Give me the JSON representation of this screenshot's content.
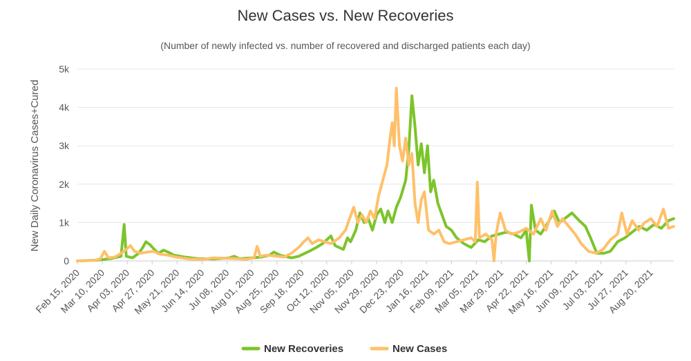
{
  "chart_data": {
    "type": "line",
    "title": "New Cases vs. New Recoveries",
    "subtitle": "(Number of newly infected vs. number of recovered and discharged patients each day)",
    "ylabel": "New Daily Coronavirus Cases+Cured",
    "xlabel": "",
    "ylim": [
      0,
      5000
    ],
    "yticks": [
      {
        "value": 0,
        "label": "0"
      },
      {
        "value": 1000,
        "label": "1k"
      },
      {
        "value": 2000,
        "label": "2k"
      },
      {
        "value": 3000,
        "label": "3k"
      },
      {
        "value": 4000,
        "label": "4k"
      },
      {
        "value": 5000,
        "label": "5k"
      }
    ],
    "xrange": [
      "2020-02-15",
      "2021-09-11"
    ],
    "xticks": [
      "Feb 15, 2020",
      "Mar 10, 2020",
      "Apr 03, 2020",
      "Apr 27, 2020",
      "May 21, 2020",
      "Jun 14, 2020",
      "Jul 08, 2020",
      "Aug 01, 2020",
      "Aug 25, 2020",
      "Sep 18, 2020",
      "Oct 12, 2020",
      "Nov 05, 2020",
      "Nov 29, 2020",
      "Dec 23, 2020",
      "Jan 16, 2021",
      "Feb 09, 2021",
      "Mar 05, 2021",
      "Mar 29, 2021",
      "Apr 22, 2021",
      "May 16, 2021",
      "Jun 09, 2021",
      "Jul 03, 2021",
      "Jul 27, 2021",
      "Aug 20, 2021"
    ],
    "grid": true,
    "legend_position": "bottom-center",
    "series": [
      {
        "name": "New Recoveries",
        "color": "#7cc42b",
        "points": [
          [
            "2020-02-15",
            0
          ],
          [
            "2020-03-05",
            20
          ],
          [
            "2020-03-18",
            60
          ],
          [
            "2020-03-28",
            120
          ],
          [
            "2020-03-31",
            950
          ],
          [
            "2020-04-02",
            120
          ],
          [
            "2020-04-08",
            80
          ],
          [
            "2020-04-14",
            200
          ],
          [
            "2020-04-18",
            350
          ],
          [
            "2020-04-21",
            500
          ],
          [
            "2020-04-25",
            420
          ],
          [
            "2020-04-29",
            300
          ],
          [
            "2020-05-03",
            200
          ],
          [
            "2020-05-08",
            280
          ],
          [
            "2020-05-13",
            220
          ],
          [
            "2020-05-18",
            150
          ],
          [
            "2020-05-28",
            100
          ],
          [
            "2020-06-10",
            60
          ],
          [
            "2020-06-25",
            50
          ],
          [
            "2020-07-10",
            80
          ],
          [
            "2020-07-15",
            120
          ],
          [
            "2020-07-20",
            60
          ],
          [
            "2020-08-01",
            80
          ],
          [
            "2020-08-10",
            100
          ],
          [
            "2020-08-18",
            150
          ],
          [
            "2020-08-22",
            230
          ],
          [
            "2020-08-28",
            150
          ],
          [
            "2020-09-08",
            80
          ],
          [
            "2020-09-15",
            120
          ],
          [
            "2020-09-25",
            250
          ],
          [
            "2020-10-02",
            350
          ],
          [
            "2020-10-08",
            450
          ],
          [
            "2020-10-12",
            550
          ],
          [
            "2020-10-16",
            650
          ],
          [
            "2020-10-20",
            400
          ],
          [
            "2020-10-28",
            300
          ],
          [
            "2020-11-01",
            600
          ],
          [
            "2020-11-04",
            500
          ],
          [
            "2020-11-09",
            800
          ],
          [
            "2020-11-13",
            1250
          ],
          [
            "2020-11-17",
            1000
          ],
          [
            "2020-11-21",
            1100
          ],
          [
            "2020-11-25",
            800
          ],
          [
            "2020-11-29",
            1200
          ],
          [
            "2020-12-03",
            1350
          ],
          [
            "2020-12-07",
            1000
          ],
          [
            "2020-12-10",
            1300
          ],
          [
            "2020-12-14",
            1000
          ],
          [
            "2020-12-18",
            1400
          ],
          [
            "2020-12-22",
            1650
          ],
          [
            "2020-12-27",
            2100
          ],
          [
            "2020-12-30",
            2900
          ],
          [
            "2021-01-02",
            4300
          ],
          [
            "2021-01-05",
            3500
          ],
          [
            "2021-01-08",
            2500
          ],
          [
            "2021-01-11",
            3050
          ],
          [
            "2021-01-14",
            2300
          ],
          [
            "2021-01-17",
            3000
          ],
          [
            "2021-01-20",
            1800
          ],
          [
            "2021-01-23",
            2100
          ],
          [
            "2021-01-27",
            1500
          ],
          [
            "2021-01-31",
            1200
          ],
          [
            "2021-02-04",
            900
          ],
          [
            "2021-02-09",
            800
          ],
          [
            "2021-02-14",
            600
          ],
          [
            "2021-02-21",
            450
          ],
          [
            "2021-02-28",
            350
          ],
          [
            "2021-03-07",
            550
          ],
          [
            "2021-03-13",
            500
          ],
          [
            "2021-03-20",
            650
          ],
          [
            "2021-03-27",
            700
          ],
          [
            "2021-04-03",
            750
          ],
          [
            "2021-04-10",
            700
          ],
          [
            "2021-04-17",
            600
          ],
          [
            "2021-04-22",
            800
          ],
          [
            "2021-04-25",
            0
          ],
          [
            "2021-04-27",
            1450
          ],
          [
            "2021-05-01",
            800
          ],
          [
            "2021-05-06",
            700
          ],
          [
            "2021-05-13",
            1000
          ],
          [
            "2021-05-19",
            1300
          ],
          [
            "2021-05-24",
            1000
          ],
          [
            "2021-05-29",
            1100
          ],
          [
            "2021-06-05",
            1250
          ],
          [
            "2021-06-12",
            1050
          ],
          [
            "2021-06-18",
            900
          ],
          [
            "2021-06-23",
            600
          ],
          [
            "2021-06-29",
            200
          ],
          [
            "2021-07-06",
            200
          ],
          [
            "2021-07-12",
            250
          ],
          [
            "2021-07-19",
            500
          ],
          [
            "2021-07-26",
            600
          ],
          [
            "2021-08-02",
            750
          ],
          [
            "2021-08-09",
            900
          ],
          [
            "2021-08-16",
            800
          ],
          [
            "2021-08-23",
            950
          ],
          [
            "2021-08-30",
            850
          ],
          [
            "2021-09-06",
            1050
          ],
          [
            "2021-09-11",
            1100
          ]
        ]
      },
      {
        "name": "New Cases",
        "color": "#ffc06a",
        "points": [
          [
            "2020-02-15",
            0
          ],
          [
            "2020-03-01",
            10
          ],
          [
            "2020-03-08",
            50
          ],
          [
            "2020-03-12",
            250
          ],
          [
            "2020-03-16",
            80
          ],
          [
            "2020-03-22",
            100
          ],
          [
            "2020-03-28",
            200
          ],
          [
            "2020-04-02",
            300
          ],
          [
            "2020-04-06",
            400
          ],
          [
            "2020-04-10",
            250
          ],
          [
            "2020-04-16",
            200
          ],
          [
            "2020-04-22",
            230
          ],
          [
            "2020-04-28",
            250
          ],
          [
            "2020-05-04",
            180
          ],
          [
            "2020-05-12",
            150
          ],
          [
            "2020-05-20",
            100
          ],
          [
            "2020-06-01",
            50
          ],
          [
            "2020-06-15",
            40
          ],
          [
            "2020-06-25",
            80
          ],
          [
            "2020-07-05",
            70
          ],
          [
            "2020-07-18",
            60
          ],
          [
            "2020-07-26",
            40
          ],
          [
            "2020-08-03",
            80
          ],
          [
            "2020-08-06",
            380
          ],
          [
            "2020-08-09",
            120
          ],
          [
            "2020-08-15",
            150
          ],
          [
            "2020-08-22",
            130
          ],
          [
            "2020-09-01",
            100
          ],
          [
            "2020-09-08",
            200
          ],
          [
            "2020-09-15",
            350
          ],
          [
            "2020-09-20",
            500
          ],
          [
            "2020-09-24",
            600
          ],
          [
            "2020-09-28",
            450
          ],
          [
            "2020-10-04",
            550
          ],
          [
            "2020-10-10",
            500
          ],
          [
            "2020-10-16",
            450
          ],
          [
            "2020-10-24",
            600
          ],
          [
            "2020-10-30",
            800
          ],
          [
            "2020-11-03",
            1100
          ],
          [
            "2020-11-07",
            1400
          ],
          [
            "2020-11-11",
            1000
          ],
          [
            "2020-11-15",
            1200
          ],
          [
            "2020-11-19",
            1000
          ],
          [
            "2020-11-23",
            1300
          ],
          [
            "2020-11-27",
            1100
          ],
          [
            "2020-12-01",
            1700
          ],
          [
            "2020-12-05",
            2100
          ],
          [
            "2020-12-09",
            2500
          ],
          [
            "2020-12-12",
            3200
          ],
          [
            "2020-12-14",
            3600
          ],
          [
            "2020-12-16",
            3000
          ],
          [
            "2020-12-18",
            4500
          ],
          [
            "2020-12-21",
            3000
          ],
          [
            "2020-12-24",
            2600
          ],
          [
            "2020-12-27",
            3200
          ],
          [
            "2020-12-30",
            2500
          ],
          [
            "2021-01-02",
            2800
          ],
          [
            "2021-01-05",
            1500
          ],
          [
            "2021-01-08",
            1000
          ],
          [
            "2021-01-11",
            1600
          ],
          [
            "2021-01-14",
            1800
          ],
          [
            "2021-01-18",
            800
          ],
          [
            "2021-01-23",
            700
          ],
          [
            "2021-01-28",
            800
          ],
          [
            "2021-02-02",
            500
          ],
          [
            "2021-02-07",
            450
          ],
          [
            "2021-02-14",
            500
          ],
          [
            "2021-02-21",
            550
          ],
          [
            "2021-02-28",
            600
          ],
          [
            "2021-03-04",
            500
          ],
          [
            "2021-03-06",
            2050
          ],
          [
            "2021-03-08",
            600
          ],
          [
            "2021-03-14",
            700
          ],
          [
            "2021-03-20",
            550
          ],
          [
            "2021-03-22",
            0
          ],
          [
            "2021-03-24",
            700
          ],
          [
            "2021-03-28",
            1250
          ],
          [
            "2021-04-02",
            800
          ],
          [
            "2021-04-08",
            700
          ],
          [
            "2021-04-15",
            750
          ],
          [
            "2021-04-22",
            850
          ],
          [
            "2021-04-29",
            700
          ],
          [
            "2021-05-06",
            1100
          ],
          [
            "2021-05-11",
            800
          ],
          [
            "2021-05-17",
            1300
          ],
          [
            "2021-05-22",
            900
          ],
          [
            "2021-05-27",
            1100
          ],
          [
            "2021-06-02",
            900
          ],
          [
            "2021-06-08",
            700
          ],
          [
            "2021-06-14",
            450
          ],
          [
            "2021-06-21",
            250
          ],
          [
            "2021-06-28",
            200
          ],
          [
            "2021-07-05",
            300
          ],
          [
            "2021-07-12",
            550
          ],
          [
            "2021-07-19",
            700
          ],
          [
            "2021-07-23",
            1250
          ],
          [
            "2021-07-28",
            700
          ],
          [
            "2021-08-02",
            1050
          ],
          [
            "2021-08-08",
            800
          ],
          [
            "2021-08-14",
            1000
          ],
          [
            "2021-08-20",
            1100
          ],
          [
            "2021-08-26",
            900
          ],
          [
            "2021-09-01",
            1350
          ],
          [
            "2021-09-06",
            850
          ],
          [
            "2021-09-11",
            900
          ]
        ]
      }
    ]
  }
}
